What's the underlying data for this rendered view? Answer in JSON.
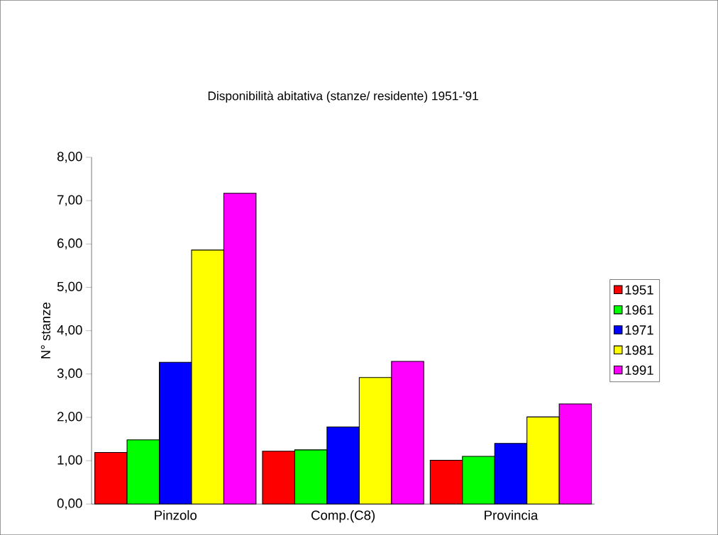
{
  "chart_data": {
    "type": "bar",
    "title": "Disponibilità abitativa (stanze/ residente) 1951-'91",
    "ylabel": "N° stanze",
    "categories": [
      "Pinzolo",
      "Comp.(C8)",
      "Provincia"
    ],
    "series": [
      {
        "name": "1951",
        "color": "#ff0000",
        "values": [
          1.19,
          1.22,
          1.01
        ]
      },
      {
        "name": "1961",
        "color": "#00ff00",
        "values": [
          1.48,
          1.25,
          1.1
        ]
      },
      {
        "name": "1971",
        "color": "#0000ff",
        "values": [
          3.27,
          1.78,
          1.4
        ]
      },
      {
        "name": "1981",
        "color": "#ffff00",
        "values": [
          5.86,
          2.92,
          2.01
        ]
      },
      {
        "name": "1991",
        "color": "#ff00ff",
        "values": [
          7.17,
          3.29,
          2.31
        ]
      }
    ],
    "ylim": [
      0,
      8
    ],
    "yticks": [
      {
        "value": 0,
        "label": "0,00"
      },
      {
        "value": 1,
        "label": "1,00"
      },
      {
        "value": 2,
        "label": "2,00"
      },
      {
        "value": 3,
        "label": "3,00"
      },
      {
        "value": 4,
        "label": "4,00"
      },
      {
        "value": 5,
        "label": "5,00"
      },
      {
        "value": 6,
        "label": "6,00"
      },
      {
        "value": 7,
        "label": "7,00"
      },
      {
        "value": 8,
        "label": "8,00"
      }
    ],
    "grid": false,
    "legend": "right"
  }
}
